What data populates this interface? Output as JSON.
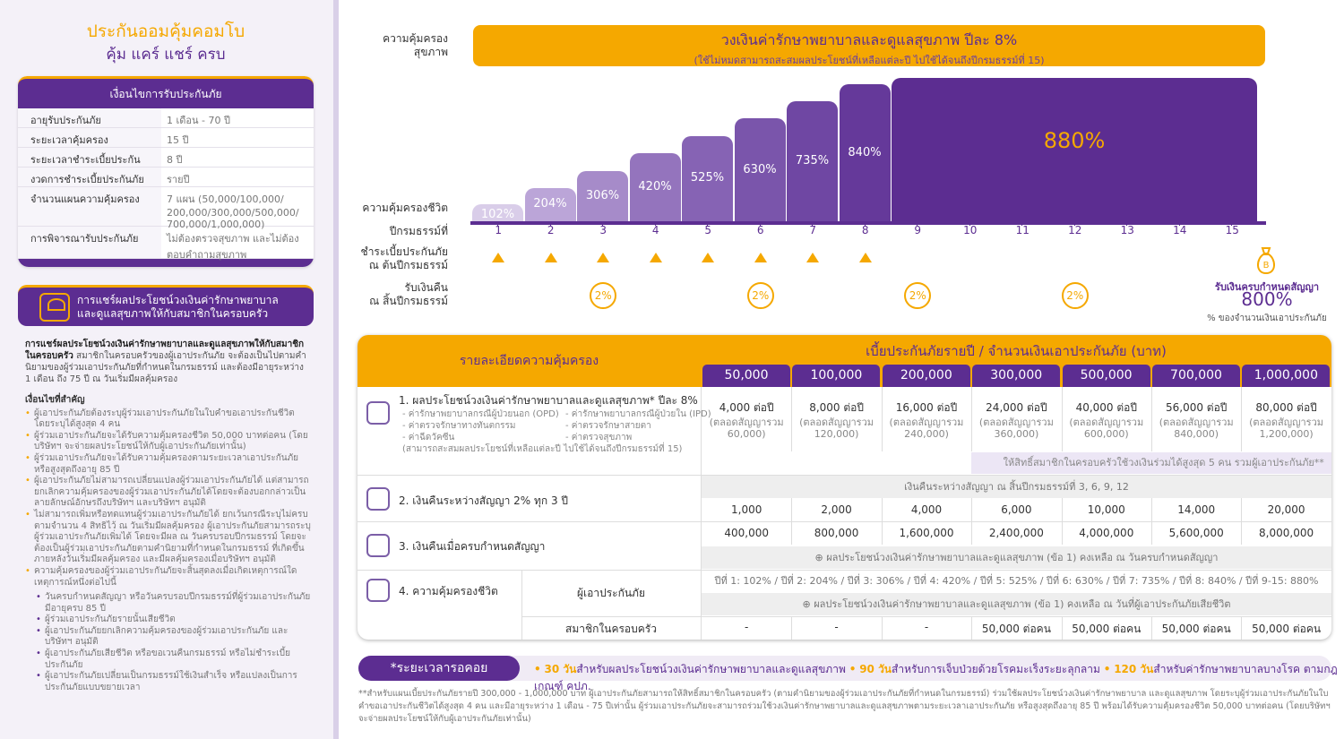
{
  "left": {
    "title1": "ประกันออมคุ้มคอมโบ",
    "title2": "คุ้ม แคร์ แชร์ ครบ",
    "cond_header": "เงื่อนไขการรับประกันภัย",
    "cond_rows": [
      {
        "k": "อายุรับประกันภัย",
        "v": "1 เดือน - 70 ปี"
      },
      {
        "k": "ระยะเวลาคุ้มครอง",
        "v": "15 ปี"
      },
      {
        "k": "ระยะเวลาชำระเบี้ยประกันภัย",
        "v": "8 ปี"
      },
      {
        "k": "งวดการชำระเบี้ยประกันภัย",
        "v": "รายปี"
      },
      {
        "k": "จำนวนแผนความคุ้มครอง",
        "v": "7 แผน (50,000/100,000/ 200,000/300,000/500,000/ 700,000/1,000,000)"
      },
      {
        "k": "การพิจารณารับประกันภัย",
        "v": "ไม่ต้องตรวจสุขภาพ และไม่ต้องตอบคำถามสุขภาพ"
      }
    ],
    "share_line1": "การแชร์ผลประโยชน์วงเงินค่ารักษาพยาบาล",
    "share_line2": "และดูแลสุขภาพให้กับสมาชิกในครอบครัว",
    "intro_bold": "การแชร์ผลประโยชน์วงเงินค่ารักษาพยาบาลและดูแลสุขภาพให้กับสมาชิกในครอบครัว",
    "intro_rest": "สมาชิกในครอบครัวของผู้เอาประกันภัย จะต้องเป็นไปตามคำนิยามของผู้ร่วมเอาประกันภัยที่กำหนดในกรมธรรม์ และต้องมีอายุระหว่าง 1 เดือน ถึง 75 ปี ณ วันเริ่มมีผลคุ้มครอง",
    "notes_head": "เงื่อนไขที่สำคัญ",
    "notes": [
      "ผู้เอาประกันภัยต้องระบุผู้ร่วมเอาประกันภัยในใบคำขอเอาประกันชีวิต โดยระบุได้สูงสุด 4 คน",
      "ผู้ร่วมเอาประกันภัยจะได้รับความคุ้มครองชีวิต 50,000 บาทต่อคน (โดยบริษัทฯ จะจ่ายผลประโยชน์ให้กับผู้เอาประกันภัยเท่านั้น)",
      "ผู้ร่วมเอาประกันภัยจะได้รับความคุ้มครองตามระยะเวลาเอาประกันภัย หรือสูงสุดถึงอายุ 85 ปี",
      "ผู้เอาประกันภัยไม่สามารถเปลี่ยนแปลงผู้ร่วมเอาประกันภัยได้ แต่สามารถยกเลิกความคุ้มครองของผู้ร่วมเอาประกันภัยได้โดยจะต้องบอกกล่าวเป็นลายลักษณ์อักษรถึงบริษัทฯ และบริษัทฯ อนุมัติ",
      "ไม่สามารถเพิ่มหรือทดแทนผู้ร่วมเอาประกันภัยได้ ยกเว้นกรณีระบุไม่ครบตามจำนวน 4 สิทธิไว้ ณ วันเริ่มมีผลคุ้มครอง ผู้เอาประกันภัยสามารถระบุผู้ร่วมเอาประกันภัยเพิ่มได้ โดยจะมีผล ณ วันครบรอบปีกรมธรรม์ โดยจะต้องเป็นผู้ร่วมเอาประกันภัยตามคำนิยามที่กำหนดในกรมธรรม์ ที่เกิดขึ้นภายหลังวันเริ่มมีผลคุ้มครอง และมีผลคุ้มครองเมื่อบริษัทฯ อนุมัติ",
      "ความคุ้มครองของผู้ร่วมเอาประกันภัยจะสิ้นสุดลงเมื่อเกิดเหตุการณ์ใดเหตุการณ์หนึ่งต่อไปนี้"
    ],
    "sub_notes": [
      "วันครบกำหนดสัญญา หรือวันครบรอบปีกรมธรรม์ที่ผู้ร่วมเอาประกันภัยมีอายุครบ 85 ปี",
      "ผู้ร่วมเอาประกันภัยรายนั้นเสียชีวิต",
      "ผู้เอาประกันภัยยกเลิกความคุ้มครองของผู้ร่วมเอาประกันภัย และบริษัทฯ อนุมัติ",
      "ผู้เอาประกันภัยเสียชีวิต หรือขอเวนคืนกรมธรรม์ หรือไม่ชำระเบี้ยประกันภัย",
      "ผู้เอาประกันภัยเปลี่ยนเป็นกรมธรรม์ใช้เงินสำเร็จ หรือแปลงเป็นการประกันภัยแบบขยายเวลา"
    ]
  },
  "chart": {
    "label_health": "ความคุ้มครอง\nสุขภาพ",
    "banner_line1": "วงเงินค่ารักษาพยาบาลและดูแลสุขภาพ ปีละ 8%",
    "banner_line2": "(ใช้ไม่หมดสามารถสะสมผลประโยชน์ที่เหลือแต่ละปี ไปใช้ได้จนถึงปีกรมธรรม์ที่ 15)",
    "label_life": "ความคุ้มครองชีวิต",
    "label_year": "ปีกรมธรรม์ที่",
    "label_premium": "ชำระเบี้ยประกันภัย\nณ ต้นปีกรมธรรม์",
    "label_cashback": "รับเงินคืน\nณ สิ้นปีกรมธรรม์",
    "maturity_line1": "รับเงินครบกำหนดสัญญา",
    "maturity_value": "800%",
    "maturity_line3": "% ของจำนวนเงินเอาประกันภัย",
    "colors": {
      "purple": "#5c2d91",
      "gold": "#f5a800"
    }
  },
  "chart_data": {
    "type": "bar",
    "categories": [
      "1",
      "2",
      "3",
      "4",
      "5",
      "6",
      "7",
      "8",
      "9",
      "10",
      "11",
      "12",
      "13",
      "14",
      "15"
    ],
    "steps": [
      {
        "years": [
          1
        ],
        "label": "102%",
        "value": 102
      },
      {
        "years": [
          2
        ],
        "label": "204%",
        "value": 204
      },
      {
        "years": [
          3
        ],
        "label": "306%",
        "value": 306
      },
      {
        "years": [
          4
        ],
        "label": "420%",
        "value": 420
      },
      {
        "years": [
          5
        ],
        "label": "525%",
        "value": 525
      },
      {
        "years": [
          6
        ],
        "label": "630%",
        "value": 630
      },
      {
        "years": [
          7
        ],
        "label": "735%",
        "value": 735
      },
      {
        "years": [
          8
        ],
        "label": "840%",
        "value": 840
      },
      {
        "years": [
          9,
          15
        ],
        "label": "880%",
        "value": 880
      }
    ],
    "premium_years": [
      1,
      2,
      3,
      4,
      5,
      6,
      7,
      8
    ],
    "cashback_years": [
      3,
      6,
      9,
      12
    ],
    "cashback_label": "2%"
  },
  "table": {
    "head_left": "รายละเอียดความคุ้มครอง",
    "head_right": "เบี้ยประกันภัยรายปี / จำนวนเงินเอาประกันภัย (บาท)",
    "amounts": [
      "50,000",
      "100,000",
      "200,000",
      "300,000",
      "500,000",
      "700,000",
      "1,000,000"
    ],
    "row1_title": "1. ผลประโยชน์วงเงินค่ารักษาพยาบาลและดูแลสุขภาพ* ปีละ 8%",
    "row1_details": [
      "- ค่ารักษาพยาบาลกรณีผู้ป่วยนอก (OPD)",
      "- ค่ารักษาพยาบาลกรณีผู้ป่วยใน (IPD)",
      "- ค่าตรวจรักษาทางทันตกรรม",
      "- ค่าตรวจรักษาสายตา",
      "- ค่าฉีดวัคซีน",
      "- ค่าตรวจสุขภาพ",
      "(สามารถสะสมผลประโยชน์ที่เหลือแต่ละปี ไปใช้ได้จนถึงปีกรมธรรม์ที่ 15)"
    ],
    "row1_values": [
      {
        "a": "4,000 ต่อปี",
        "b": "(ตลอดสัญญารวม",
        "c": "60,000)"
      },
      {
        "a": "8,000 ต่อปี",
        "b": "(ตลอดสัญญารวม",
        "c": "120,000)"
      },
      {
        "a": "16,000 ต่อปี",
        "b": "(ตลอดสัญญารวม",
        "c": "240,000)"
      },
      {
        "a": "24,000 ต่อปี",
        "b": "(ตลอดสัญญารวม",
        "c": "360,000)"
      },
      {
        "a": "40,000 ต่อปี",
        "b": "(ตลอดสัญญารวม",
        "c": "600,000)"
      },
      {
        "a": "56,000 ต่อปี",
        "b": "(ตลอดสัญญารวม",
        "c": "840,000)"
      },
      {
        "a": "80,000 ต่อปี",
        "b": "(ตลอดสัญญารวม",
        "c": "1,200,000)"
      }
    ],
    "row1_share_note": "ให้สิทธิ์สมาชิกในครอบครัวใช้วงเงินร่วมได้สูงสุด 5 คน รวมผู้เอาประกันภัย**",
    "row2_title": "2. เงินคืนระหว่างสัญญา 2% ทุก 3 ปี",
    "row2_note": "เงินคืนระหว่างสัญญา ณ สิ้นปีกรมธรรม์ที่ 3, 6, 9, 12",
    "row2_values": [
      "1,000",
      "2,000",
      "4,000",
      "6,000",
      "10,000",
      "14,000",
      "20,000"
    ],
    "row3_title": "3. เงินคืนเมื่อครบกำหนดสัญญา",
    "row3_values": [
      "400,000",
      "800,000",
      "1,600,000",
      "2,400,000",
      "4,000,000",
      "5,600,000",
      "8,000,000"
    ],
    "row3_note": "ผลประโยชน์วงเงินค่ารักษาพยาบาลและดูแลสุขภาพ (ข้อ 1) คงเหลือ ณ วันครบกำหนดสัญญา",
    "row4_title": "4. ความคุ้มครองชีวิต",
    "row4_sub1": "ผู้เอาประกันภัย",
    "row4_life": "ปีที่ 1: 102% / ปีที่ 2: 204% / ปีที่ 3: 306% / ปีที่ 4: 420% / ปีที่ 5: 525% / ปีที่ 6: 630% / ปีที่ 7: 735% / ปีที่ 8: 840% / ปีที่ 9-15: 880%",
    "row4_note": "ผลประโยชน์วงเงินค่ารักษาพยาบาลและดูแลสุขภาพ (ข้อ 1) คงเหลือ ณ วันที่ผู้เอาประกันภัยเสียชีวิต",
    "row4_sub2": "สมาชิกในครอบครัว",
    "row4_family": [
      "-",
      "-",
      "-",
      "50,000 ต่อคน",
      "50,000 ต่อคน",
      "50,000 ต่อคน",
      "50,000 ต่อคน"
    ]
  },
  "wait": {
    "label": "*ระยะเวลารอคอย",
    "t1": "30 วัน",
    "t1b": "สำหรับผลประโยชน์วงเงินค่ารักษาพยาบาลและดูแลสุขภาพ",
    "t2": "90 วัน",
    "t2b": "สำหรับการเจ็บป่วยด้วยโรคมะเร็งระยะลุกลาม",
    "t3": "120 วัน",
    "t3b": "สำหรับค่ารักษาพยาบาลบางโรค ตามกฎเกณฑ์ คปภ."
  },
  "footnote": "**สำหรับแผนเบี้ยประกันภัยรายปี 300,000 - 1,000,000 บาท ผู้เอาประกันภัยสามารถให้สิทธิ์สมาชิกในครอบครัว (ตามคำนิยามของผู้ร่วมเอาประกันภัยที่กำหนดในกรมธรรม์) ร่วมใช้ผลประโยชน์วงเงินค่ารักษาพยาบาล และดูแลสุขภาพ โดยระบุผู้ร่วมเอาประกันภัยในใบคำขอเอาประกันชีวิตได้สูงสุด 4 คน และมีอายุระหว่าง 1 เดือน - 75 ปีเท่านั้น ผู้ร่วมเอาประกันภัยจะสามารถร่วมใช้วงเงินค่ารักษาพยาบาลและดูแลสุขภาพตามระยะเวลาเอาประกันภัย หรือสูงสุดถึงอายุ 85 ปี พร้อมได้รับความคุ้มครองชีวิต 50,000 บาทต่อคน (โดยบริษัทฯ จะจ่ายผลประโยชน์ให้กับผู้เอาประกันภัยเท่านั้น)"
}
